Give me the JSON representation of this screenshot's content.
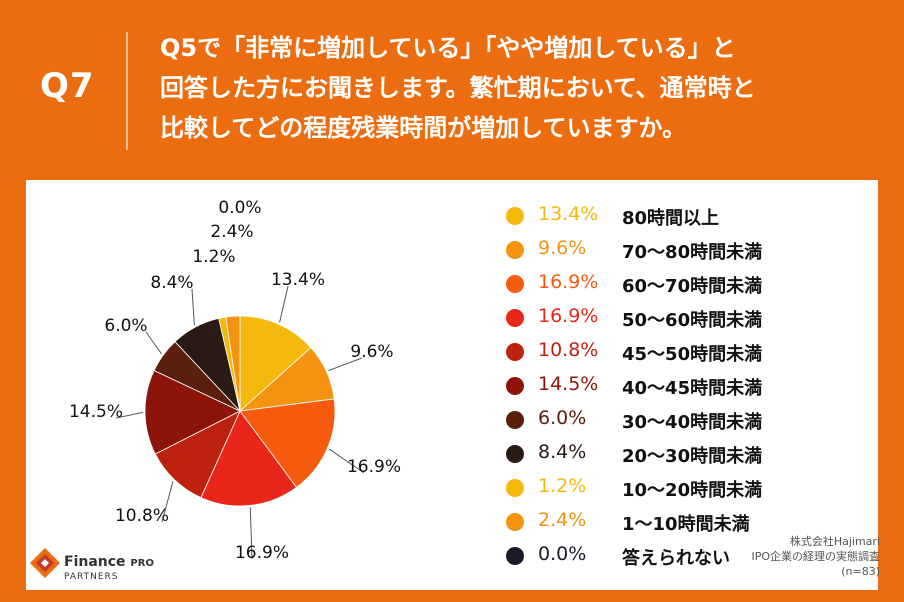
{
  "header": {
    "q_label": "Q7",
    "question_lines": [
      "Q5で「非常に増加している」「やや増加している」と",
      "回答した方にお聞きします。繁忙期において、通常時と",
      "比較してどの程度残業時間が増加していますか。"
    ]
  },
  "chart_data": {
    "type": "pie",
    "title": "",
    "categories": [
      "80時間以上",
      "70〜80時間未満",
      "60〜70時間未満",
      "50〜60時間未満",
      "45〜50時間未満",
      "40〜45時間未満",
      "30〜40時間未満",
      "20〜30時間未満",
      "10〜20時間未満",
      "1〜10時間未満",
      "答えられない"
    ],
    "values": [
      13.4,
      9.6,
      16.9,
      16.9,
      10.8,
      14.5,
      6.0,
      8.4,
      1.2,
      2.4,
      0.0
    ],
    "value_labels": [
      "13.4%",
      "9.6%",
      "16.9%",
      "16.9%",
      "10.8%",
      "14.5%",
      "6.0%",
      "8.4%",
      "1.2%",
      "2.4%",
      "0.0%"
    ],
    "colors": [
      "#f5b90d",
      "#f3930f",
      "#f65a0d",
      "#e8271a",
      "#bd220f",
      "#8c1408",
      "#5a200d",
      "#2a1a14",
      "#f5b90d",
      "#f3930f",
      "#1c1a2a"
    ],
    "legend_position": "right"
  },
  "footer": {
    "logo_name": "Finance",
    "logo_pro": "PRO",
    "logo_sub": "PARTNERS",
    "source_lines": [
      "株式会社Hajimari",
      "IPO企業の経理の実態調査",
      "(n=83)"
    ]
  }
}
